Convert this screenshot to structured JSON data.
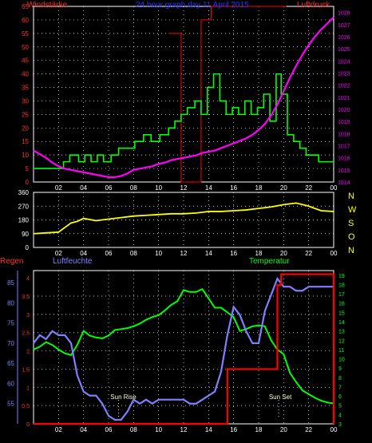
{
  "header": {
    "title": "24 hour graph day  11 April 2015",
    "left_label": "Windstärke",
    "right_label": "Luftdruck"
  },
  "wind_axis_ticks": [
    "65",
    "60",
    "55",
    "50",
    "45",
    "40",
    "35",
    "30",
    "25",
    "20",
    "15",
    "10",
    "5",
    "0"
  ],
  "pressure_axis_ticks": [
    "1028",
    "1027",
    "1026",
    "1025",
    "1024",
    "1023",
    "1022",
    "1021",
    "1020",
    "1019",
    "1018",
    "1017",
    "1016",
    "1015",
    "1014"
  ],
  "dir_axis_ticks": [
    "360",
    "270",
    "180",
    "90",
    "0"
  ],
  "compass": [
    "N",
    "W",
    "S",
    "O",
    "N"
  ],
  "bottom_labels": {
    "regen": "Regen",
    "luftfeuchte": "Luftfeuchte",
    "temperatur": "Temperatur"
  },
  "rain_axis_ticks": [
    "4",
    "3.5",
    "3",
    "2.5",
    "2",
    "1.5",
    "1",
    "0.5",
    "0"
  ],
  "hum_axis_ticks": [
    "85",
    "80",
    "75",
    "70",
    "65",
    "60",
    "55"
  ],
  "temp_axis_ticks": [
    "19",
    "18",
    "17",
    "16",
    "15",
    "14",
    "13",
    "12",
    "11",
    "10",
    "9",
    "8",
    "7",
    "6",
    "5",
    "4",
    "3"
  ],
  "hour_ticks": [
    "02",
    "04",
    "06",
    "08",
    "10",
    "12",
    "14",
    "16",
    "18",
    "20",
    "22",
    "00"
  ],
  "annotations": {
    "sunrise": "Sun Rise",
    "sunset": "Sun Set"
  },
  "colors": {
    "wind": "#00ff00",
    "gust": "#ff0000",
    "pressure": "#ff00ff",
    "direction": "#ffff00",
    "humidity": "#8080ff",
    "temperature": "#00ff00",
    "rain": "#ff0000",
    "grid": "#ffffff"
  },
  "chart_data": [
    {
      "type": "line",
      "title": "24 hour graph day  11 April 2015",
      "x_unit": "hour",
      "xlim": [
        0,
        24
      ],
      "series": [
        {
          "name": "Windstärke",
          "axis": "left",
          "ylim": [
            0,
            65
          ],
          "step": true,
          "x": [
            0,
            2.4,
            2.9,
            3.6,
            4.1,
            4.6,
            5.1,
            5.6,
            6.2,
            6.8,
            7.5,
            8.1,
            8.8,
            9.4,
            10.1,
            10.8,
            11.3,
            11.8,
            12.3,
            12.9,
            13.4,
            13.9,
            14.4,
            14.9,
            15.4,
            15.9,
            16.4,
            16.9,
            17.4,
            17.9,
            18.4,
            18.9,
            19.4,
            19.8,
            20.3,
            20.8,
            21.3,
            21.8,
            22.3,
            22.8,
            23.3,
            24
          ],
          "y": [
            5,
            7.5,
            10,
            7.5,
            10,
            7.5,
            10,
            7.5,
            10,
            12.5,
            12.5,
            15,
            17.5,
            15,
            17.5,
            20,
            22.5,
            25,
            27.5,
            30,
            25,
            35,
            40,
            30,
            25,
            27.5,
            25,
            30,
            25,
            27.5,
            32.5,
            22.5,
            40,
            32.5,
            17.5,
            15,
            12.5,
            10,
            10,
            7.5,
            7.5,
            7.5
          ]
        },
        {
          "name": "Gust",
          "axis": "left",
          "ylim": [
            0,
            65
          ],
          "step": true,
          "x": [
            10.8,
            11.3,
            11.8,
            12.3,
            13.4,
            13.6,
            14.2,
            14.5,
            19.7,
            20.2
          ],
          "y": [
            55,
            55,
            0,
            0,
            60,
            60,
            65,
            65,
            65,
            65
          ]
        },
        {
          "name": "Luftdruck",
          "axis": "right",
          "ylim": [
            1014,
            1028.5
          ],
          "x": [
            0,
            0.5,
            1,
            1.5,
            2,
            2.5,
            3,
            3.5,
            4,
            4.5,
            5,
            5.5,
            6,
            6.5,
            7,
            7.5,
            8,
            8.5,
            9,
            9.5,
            10,
            10.5,
            11,
            11.5,
            12,
            12.5,
            13,
            13.5,
            14,
            14.5,
            15,
            15.5,
            16,
            16.5,
            17,
            17.5,
            18,
            18.5,
            19,
            19.5,
            20,
            20.5,
            21,
            21.5,
            22,
            22.5,
            23,
            23.5,
            24
          ],
          "y": [
            1016.6,
            1016.3,
            1016.0,
            1015.6,
            1015.3,
            1015.1,
            1015.0,
            1014.9,
            1014.8,
            1014.7,
            1014.6,
            1014.5,
            1014.4,
            1014.4,
            1014.5,
            1014.7,
            1015.0,
            1015.1,
            1015.2,
            1015.3,
            1015.5,
            1015.6,
            1015.8,
            1015.9,
            1016.0,
            1016.1,
            1016.2,
            1016.4,
            1016.5,
            1016.6,
            1016.8,
            1017.0,
            1017.2,
            1017.4,
            1017.6,
            1017.9,
            1018.3,
            1018.8,
            1019.5,
            1020.4,
            1021.5,
            1022.6,
            1023.6,
            1024.5,
            1025.3,
            1026.0,
            1026.6,
            1027.1,
            1027.6
          ]
        }
      ]
    },
    {
      "type": "line",
      "x_unit": "hour",
      "xlim": [
        0,
        24
      ],
      "ylim": [
        0,
        360
      ],
      "series": [
        {
          "name": "direction",
          "x": [
            0,
            1,
            2,
            2.5,
            3,
            3.5,
            4,
            5,
            6,
            7,
            8,
            9,
            10,
            11,
            12,
            13,
            14,
            15,
            16,
            17,
            18,
            19,
            20,
            21,
            22,
            23,
            24
          ],
          "y": [
            90,
            95,
            100,
            130,
            160,
            170,
            190,
            175,
            185,
            195,
            205,
            210,
            215,
            220,
            220,
            225,
            235,
            235,
            240,
            245,
            255,
            265,
            280,
            290,
            270,
            240,
            235
          ]
        }
      ]
    },
    {
      "type": "line",
      "x_unit": "hour",
      "xlim": [
        0,
        24
      ],
      "series": [
        {
          "name": "Regen",
          "axis": "rain",
          "ylim": [
            0,
            4.2
          ],
          "step": true,
          "x": [
            0,
            15.5,
            18.6,
            19.5,
            19.8,
            24
          ],
          "y": [
            0,
            1.5,
            1.5,
            3.8,
            4.1,
            0
          ]
        },
        {
          "name": "Luftfeuchte",
          "axis": "humidity",
          "ylim": [
            50,
            88
          ],
          "x": [
            0,
            0.5,
            1,
            1.5,
            2,
            2.5,
            3,
            3.5,
            4,
            4.5,
            5,
            5.5,
            6,
            6.5,
            7,
            7.5,
            8,
            8.5,
            9,
            9.5,
            10,
            10.5,
            11,
            11.5,
            12,
            12.5,
            13,
            13.5,
            14,
            14.5,
            15,
            15.5,
            16,
            16.5,
            17,
            17.5,
            18,
            18.5,
            19,
            19.5,
            20,
            20.5,
            21,
            21.5,
            22,
            22.5,
            23,
            23.5,
            24
          ],
          "y": [
            70,
            72,
            71,
            73,
            72,
            72,
            70,
            62,
            58,
            57,
            57,
            55,
            52,
            51,
            51,
            53,
            56,
            55,
            56,
            55,
            56,
            56,
            56,
            56,
            56,
            55,
            55,
            56,
            57,
            58,
            63,
            72,
            79,
            77,
            73,
            70,
            70,
            78,
            82,
            86,
            84,
            84,
            83,
            83,
            84,
            84,
            84,
            84,
            84
          ]
        },
        {
          "name": "Temperatur",
          "axis": "temperature",
          "ylim": [
            3,
            19.5
          ],
          "x": [
            0,
            0.5,
            1,
            1.5,
            2,
            2.5,
            3,
            3.5,
            4,
            4.5,
            5,
            5.5,
            6,
            6.5,
            7,
            7.5,
            8,
            8.5,
            9,
            9.5,
            10,
            10.5,
            11,
            11.5,
            12,
            12.5,
            13,
            13.5,
            14,
            14.5,
            15,
            15.5,
            16,
            16.5,
            17,
            17.5,
            18,
            18.5,
            19,
            19.5,
            20,
            20.5,
            21,
            21.5,
            22,
            22.5,
            23,
            23.5,
            24
          ],
          "y": [
            11,
            11.3,
            11.8,
            11.5,
            11,
            10.6,
            10.4,
            11.5,
            13,
            12.5,
            12.3,
            12.2,
            12.5,
            13.1,
            13.2,
            13.3,
            13.5,
            13.8,
            14.2,
            14.5,
            14.7,
            15.2,
            15.8,
            16.2,
            17.4,
            17.2,
            17.2,
            17.5,
            16.5,
            15.5,
            15.5,
            15,
            14.5,
            13,
            13.2,
            13.5,
            13.6,
            13.5,
            12,
            11,
            10.5,
            8.5,
            7.5,
            6.6,
            6.2,
            5.8,
            5.5,
            5.3,
            5.2
          ]
        }
      ]
    }
  ]
}
